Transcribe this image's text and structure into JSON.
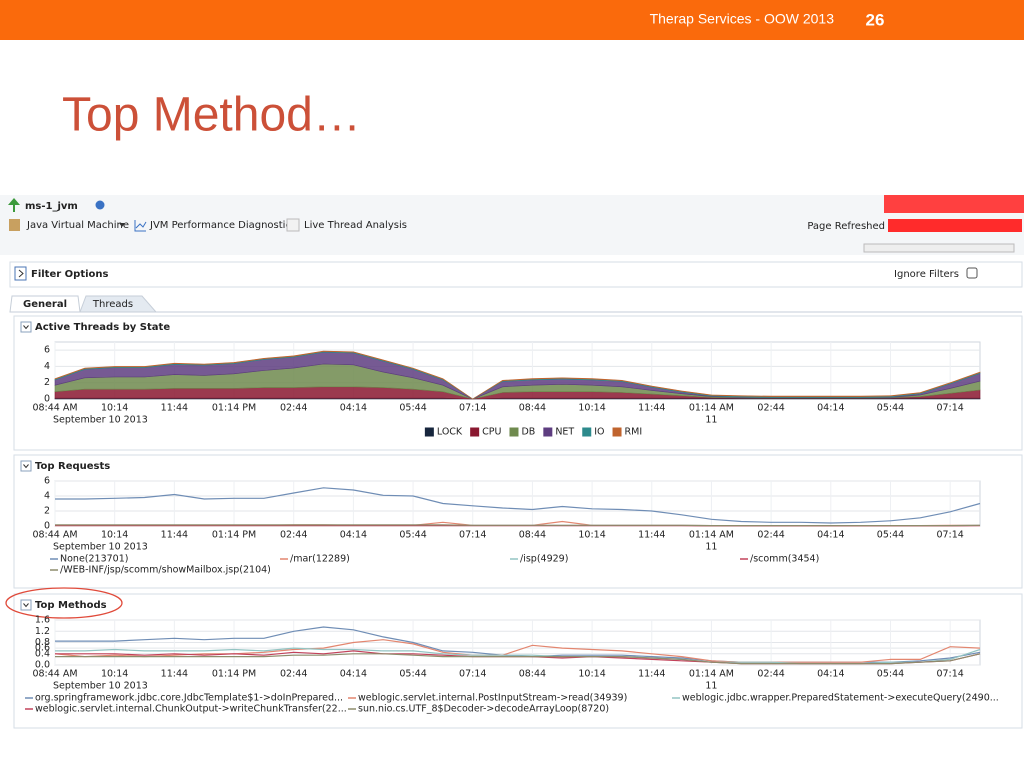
{
  "slide": {
    "header": "Therap Services - OOW 2013",
    "page_number": "26",
    "title": "Top Method…"
  },
  "app": {
    "target": "ms-1_jvm",
    "menu": [
      "Java Virtual Machine",
      "JVM Performance Diagnostics",
      "Live Thread Analysis"
    ],
    "page_refreshed": "Page Refreshed",
    "filter_options": "Filter Options",
    "ignore_filters": "Ignore Filters",
    "tabs": [
      "General",
      "Threads"
    ]
  },
  "chart_data": [
    {
      "type": "stacked_area",
      "title": "Active Threads by State",
      "categories": [
        "08:44 AM",
        null,
        "10:14",
        null,
        "11:44",
        null,
        "01:14 PM",
        null,
        "02:44",
        null,
        "04:14",
        null,
        "05:44",
        null,
        "07:14",
        null,
        "08:44",
        null,
        "10:14",
        null,
        "11:44",
        null,
        "01:14 AM",
        null,
        "02:44",
        null,
        "04:14",
        null,
        "05:44",
        null,
        "07:14",
        null
      ],
      "date_labels": [
        "September 10 2013",
        "11"
      ],
      "ylim": [
        0,
        7
      ],
      "yticks": [
        0,
        2,
        4,
        6
      ],
      "grid": true,
      "series": [
        {
          "name": "LOCK",
          "color": "#17263d",
          "values": [
            0.1,
            0.1,
            0.1,
            0.1,
            0.1,
            0.1,
            0.1,
            0.1,
            0.1,
            0.1,
            0.1,
            0.1,
            0.1,
            0.1,
            0,
            0.1,
            0.1,
            0.1,
            0.1,
            0.1,
            0.1,
            0.1,
            0.1,
            0.1,
            0.1,
            0.1,
            0.1,
            0.1,
            0.1,
            0.1,
            0.1,
            0.1
          ]
        },
        {
          "name": "CPU",
          "color": "#8a1830",
          "values": [
            0.8,
            1.1,
            1.1,
            1.1,
            1.2,
            1.2,
            1.2,
            1.3,
            1.3,
            1.4,
            1.4,
            1.3,
            1.1,
            0.8,
            0,
            0.7,
            0.8,
            0.8,
            0.8,
            0.7,
            0.5,
            0.3,
            0.1,
            0.05,
            0.05,
            0.05,
            0.05,
            0.05,
            0.05,
            0.2,
            0.6,
            1.0
          ]
        },
        {
          "name": "DB",
          "color": "#6f8a4e",
          "values": [
            0.8,
            1.4,
            1.5,
            1.5,
            1.7,
            1.6,
            1.8,
            2.1,
            2.4,
            2.8,
            2.7,
            1.9,
            1.4,
            0.8,
            0,
            0.7,
            0.8,
            0.9,
            0.8,
            0.7,
            0.45,
            0.25,
            0.1,
            0.05,
            0.05,
            0.05,
            0.05,
            0.05,
            0.05,
            0.2,
            0.6,
            1.1
          ]
        },
        {
          "name": "NET",
          "color": "#5e3d80",
          "values": [
            0.65,
            1.05,
            1.15,
            1.15,
            1.25,
            1.25,
            1.25,
            1.35,
            1.35,
            1.45,
            1.45,
            1.35,
            1.05,
            0.65,
            0,
            0.65,
            0.65,
            0.65,
            0.65,
            0.65,
            0.4,
            0.2,
            0.05,
            0.05,
            0,
            0,
            0,
            0,
            0.05,
            0.15,
            0.55,
            0.95
          ]
        },
        {
          "name": "IO",
          "color": "#2d8a8c",
          "values": [
            0.1,
            0.1,
            0.1,
            0.1,
            0.1,
            0.1,
            0.1,
            0.1,
            0.1,
            0.1,
            0.1,
            0.1,
            0.1,
            0.1,
            0,
            0.1,
            0.1,
            0.1,
            0.1,
            0.1,
            0.1,
            0.1,
            0.1,
            0.1,
            0.1,
            0.1,
            0.1,
            0.1,
            0.1,
            0.1,
            0.1,
            0.1
          ]
        },
        {
          "name": "RMI",
          "color": "#c0642e",
          "values": [
            0.05,
            0.05,
            0.05,
            0.05,
            0.05,
            0.05,
            0.05,
            0.05,
            0.05,
            0.05,
            0.05,
            0.05,
            0.05,
            0.05,
            0,
            0.05,
            0.05,
            0.05,
            0.05,
            0.05,
            0.05,
            0.05,
            0.05,
            0.05,
            0.05,
            0.05,
            0.05,
            0.05,
            0.05,
            0.05,
            0.05,
            0.05
          ]
        }
      ]
    },
    {
      "type": "line",
      "title": "Top Requests",
      "categories": [
        "08:44 AM",
        null,
        "10:14",
        null,
        "11:44",
        null,
        "01:14 PM",
        null,
        "02:44",
        null,
        "04:14",
        null,
        "05:44",
        null,
        "07:14",
        null,
        "08:44",
        null,
        "10:14",
        null,
        "11:44",
        null,
        "01:14 AM",
        null,
        "02:44",
        null,
        "04:14",
        null,
        "05:44",
        null,
        "07:14",
        null
      ],
      "date_labels": [
        "September 10 2013",
        "11"
      ],
      "ylim": [
        0,
        6
      ],
      "yticks": [
        0,
        2,
        4,
        6
      ],
      "grid": true,
      "series": [
        {
          "name": "None(213701)",
          "color": "#6f8db5",
          "values": [
            3.6,
            3.6,
            3.7,
            3.8,
            4.2,
            3.6,
            3.7,
            3.7,
            4.4,
            5.1,
            4.8,
            4.1,
            4.0,
            3.0,
            2.7,
            2.4,
            2.2,
            2.6,
            2.3,
            2.2,
            2.0,
            1.5,
            0.9,
            0.6,
            0.5,
            0.5,
            0.4,
            0.5,
            0.7,
            1.1,
            1.9,
            3.0
          ]
        },
        {
          "name": "/mar(12289)",
          "color": "#e3866f",
          "values": [
            0.1,
            0.1,
            0.1,
            0.1,
            0.1,
            0.1,
            0.1,
            0.1,
            0.15,
            0.15,
            0.1,
            0.1,
            0.1,
            0.5,
            0.1,
            0.1,
            0.1,
            0.6,
            0.1,
            0.1,
            0.1,
            0.1,
            0.05,
            0.05,
            0.05,
            0.05,
            0.05,
            0.05,
            0.05,
            0.05,
            0.1,
            0.1
          ]
        },
        {
          "name": "/isp(4929)",
          "color": "#93c4c2",
          "values": [
            0.1,
            0.1,
            0.1,
            0.1,
            0.1,
            0.1,
            0.1,
            0.1,
            0.1,
            0.1,
            0.1,
            0.1,
            0.1,
            0.1,
            0.1,
            0.1,
            0.1,
            0.1,
            0.1,
            0.1,
            0.1,
            0.1,
            0.05,
            0.05,
            0.05,
            0.05,
            0.05,
            0.05,
            0.05,
            0.05,
            0.05,
            0.1
          ]
        },
        {
          "name": "/scomm(3454)",
          "color": "#c2425a",
          "values": [
            0.05,
            0.05,
            0.05,
            0.05,
            0.05,
            0.05,
            0.05,
            0.05,
            0.05,
            0.05,
            0.05,
            0.05,
            0.05,
            0.05,
            0.05,
            0.05,
            0.05,
            0.05,
            0.05,
            0.05,
            0.05,
            0.05,
            0.02,
            0.02,
            0.02,
            0.02,
            0.02,
            0.02,
            0.02,
            0.02,
            0.02,
            0.05
          ]
        },
        {
          "name": "/WEB-INF/jsp/scomm/showMailbox.jsp(2104)",
          "color": "#8e8c6c",
          "values": [
            0.15,
            0.15,
            0.15,
            0.15,
            0.15,
            0.15,
            0.15,
            0.15,
            0.15,
            0.15,
            0.15,
            0.15,
            0.15,
            0.15,
            0.1,
            0.1,
            0.1,
            0.1,
            0.1,
            0.1,
            0.1,
            0.1,
            0.05,
            0.05,
            0.05,
            0.05,
            0.05,
            0.05,
            0.05,
            0.05,
            0.05,
            0.1
          ]
        }
      ]
    },
    {
      "type": "line",
      "title": "Top Methods",
      "categories": [
        "08:44 AM",
        null,
        "10:14",
        null,
        "11:44",
        null,
        "01:14 PM",
        null,
        "02:44",
        null,
        "04:14",
        null,
        "05:44",
        null,
        "07:14",
        null,
        "08:44",
        null,
        "10:14",
        null,
        "11:44",
        null,
        "01:14 AM",
        null,
        "02:44",
        null,
        "04:14",
        null,
        "05:44",
        null,
        "07:14",
        null
      ],
      "date_labels": [
        "September 10 2013",
        "11"
      ],
      "ylim": [
        0,
        1.6
      ],
      "yticks": [
        {
          "value": 0,
          "label": "0.0"
        },
        0.4,
        0.6,
        0.8,
        1.2,
        1.6
      ],
      "grid": true,
      "series": [
        {
          "name": "org.springframework.jdbc.core.JdbcTemplate$1->doInPrepared...",
          "color": "#6f8db5",
          "values": [
            0.85,
            0.85,
            0.85,
            0.9,
            0.95,
            0.9,
            0.95,
            0.95,
            1.2,
            1.35,
            1.25,
            1.0,
            0.8,
            0.5,
            0.45,
            0.35,
            0.3,
            0.35,
            0.35,
            0.35,
            0.3,
            0.25,
            0.15,
            0.1,
            0.1,
            0.1,
            0.1,
            0.1,
            0.1,
            0.15,
            0.25,
            0.45
          ]
        },
        {
          "name": "weblogic.servlet.internal.PostInputStream->read(34939)",
          "color": "#e3866f",
          "values": [
            0.4,
            0.3,
            0.35,
            0.3,
            0.35,
            0.4,
            0.4,
            0.45,
            0.55,
            0.6,
            0.8,
            0.9,
            0.75,
            0.45,
            0.35,
            0.35,
            0.7,
            0.6,
            0.55,
            0.5,
            0.4,
            0.3,
            0.15,
            0.1,
            0.1,
            0.1,
            0.1,
            0.1,
            0.2,
            0.2,
            0.65,
            0.6
          ]
        },
        {
          "name": "weblogic.jdbc.wrapper.PreparedStatement->executeQuery(2490...",
          "color": "#93c4c2",
          "values": [
            0.5,
            0.5,
            0.55,
            0.5,
            0.5,
            0.5,
            0.55,
            0.5,
            0.6,
            0.55,
            0.55,
            0.5,
            0.5,
            0.4,
            0.35,
            0.35,
            0.35,
            0.3,
            0.3,
            0.3,
            0.25,
            0.2,
            0.1,
            0.1,
            0.1,
            0.05,
            0.05,
            0.05,
            0.1,
            0.1,
            0.2,
            0.55
          ]
        },
        {
          "name": "weblogic.servlet.internal.ChunkOutput->writeChunkTransfer(22...",
          "color": "#c2425a",
          "values": [
            0.4,
            0.4,
            0.4,
            0.35,
            0.4,
            0.35,
            0.4,
            0.35,
            0.45,
            0.4,
            0.5,
            0.4,
            0.4,
            0.35,
            0.3,
            0.3,
            0.3,
            0.25,
            0.3,
            0.25,
            0.2,
            0.15,
            0.1,
            0.05,
            0.05,
            0.05,
            0.05,
            0.05,
            0.05,
            0.1,
            0.15,
            0.4
          ]
        },
        {
          "name": "sun.nio.cs.UTF_8$Decoder->decodeArrayLoop(8720)",
          "color": "#8e8c6c",
          "values": [
            0.3,
            0.3,
            0.3,
            0.3,
            0.3,
            0.3,
            0.3,
            0.3,
            0.35,
            0.35,
            0.4,
            0.4,
            0.35,
            0.3,
            0.3,
            0.3,
            0.3,
            0.3,
            0.3,
            0.3,
            0.25,
            0.2,
            0.1,
            0.05,
            0.05,
            0.05,
            0.05,
            0.05,
            0.05,
            0.1,
            0.15,
            0.4
          ]
        }
      ]
    }
  ]
}
